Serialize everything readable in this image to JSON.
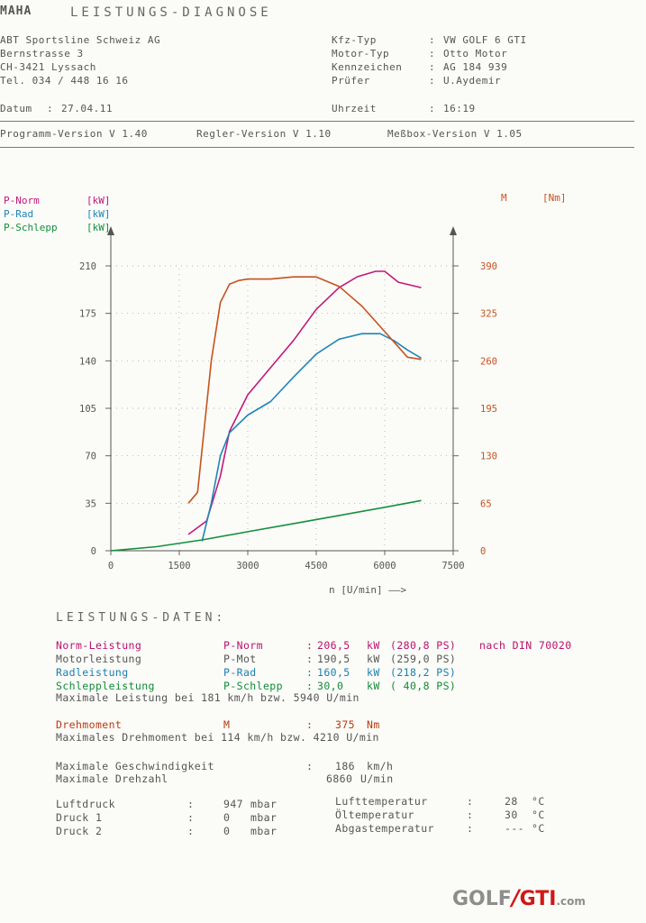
{
  "header": {
    "logo": "MAHA",
    "title": "LEISTUNGS-DIAGNOSE",
    "company": [
      "ABT Sportsline Schweiz AG",
      "Bernstrasse 3",
      "CH-3421 Lyssach",
      "Tel. 034 / 448 16 16"
    ],
    "vehicle": [
      {
        "label": "Kfz-Typ",
        "value": "VW GOLF 6 GTI"
      },
      {
        "label": "Motor-Typ",
        "value": "Otto Motor"
      },
      {
        "label": "Kennzeichen",
        "value": "AG 184 939"
      },
      {
        "label": "Prüfer",
        "value": "U.Aydemir"
      }
    ],
    "datum_label": "Datum",
    "datum": "27.04.11",
    "uhrzeit_label": "Uhrzeit",
    "uhrzeit": "16:19",
    "versions": {
      "programm": "Programm-Version V 1.40",
      "regler": "Regler-Version V 1.10",
      "messbox": "Meßbox-Version V 1.05"
    }
  },
  "chart_data": {
    "type": "line",
    "xlabel": "n [U/min] ——>",
    "x_ticks": [
      0,
      1500,
      3000,
      4500,
      6000,
      7500
    ],
    "xlim": [
      0,
      7500
    ],
    "ylim_left": [
      0,
      210
    ],
    "y_ticks_left": [
      0,
      35,
      70,
      105,
      140,
      175,
      210
    ],
    "ylim_right": [
      0,
      390
    ],
    "y_ticks_right": [
      0,
      65,
      130,
      195,
      260,
      325,
      390
    ],
    "legend_left": [
      {
        "name": "P-Norm",
        "unit": "[kW]",
        "color": "#c2187a"
      },
      {
        "name": "P-Rad",
        "unit": "[kW]",
        "color": "#1e86b8"
      },
      {
        "name": "P-Schlepp",
        "unit": "[kW]",
        "color": "#13903d"
      }
    ],
    "legend_right": {
      "name": "M",
      "unit": "[Nm]",
      "color": "#c6521e"
    },
    "series": [
      {
        "name": "P-Norm",
        "axis": "left",
        "color": "#c2187a",
        "x": [
          1700,
          2100,
          2400,
          2600,
          3000,
          3500,
          4000,
          4500,
          5000,
          5400,
          5800,
          6000,
          6300,
          6800
        ],
        "y": [
          12,
          22,
          55,
          88,
          115,
          135,
          155,
          178,
          194,
          202,
          206,
          206,
          198,
          194
        ]
      },
      {
        "name": "P-Rad",
        "axis": "left",
        "color": "#1e86b8",
        "x": [
          2000,
          2200,
          2400,
          2600,
          3000,
          3500,
          4000,
          4500,
          5000,
          5500,
          5900,
          6200,
          6500,
          6800
        ],
        "y": [
          7,
          35,
          70,
          87,
          100,
          110,
          128,
          145,
          156,
          160,
          160,
          155,
          148,
          142
        ]
      },
      {
        "name": "P-Schlepp",
        "axis": "left",
        "color": "#13903d",
        "x": [
          0,
          1000,
          2000,
          3000,
          4000,
          5000,
          6000,
          6800
        ],
        "y": [
          0,
          3,
          8,
          14,
          20,
          26,
          32,
          37
        ]
      },
      {
        "name": "M",
        "axis": "right",
        "color": "#c6521e",
        "x": [
          1700,
          1900,
          2050,
          2200,
          2400,
          2600,
          2800,
          3000,
          3500,
          4000,
          4500,
          5000,
          5500,
          6000,
          6500,
          6800
        ],
        "y": [
          65,
          80,
          170,
          260,
          340,
          365,
          370,
          372,
          372,
          375,
          375,
          362,
          335,
          300,
          265,
          262
        ]
      }
    ]
  },
  "data_section": {
    "title": "LEISTUNGS-DATEN:",
    "rows": [
      {
        "label": "Norm-Leistung",
        "sym": "P-Norm",
        "colon": ":",
        "val": "206,5",
        "unit": "kW",
        "ps": "(280,8 PS)",
        "extra": "nach DIN 70020",
        "color": "#b8126a"
      },
      {
        "label": "Motorleistung",
        "sym": "P-Mot",
        "colon": ":",
        "val": "190,5",
        "unit": "kW",
        "ps": "(259,0 PS)",
        "extra": "",
        "color": "#555555"
      },
      {
        "label": "Radleistung",
        "sym": "P-Rad",
        "colon": ":",
        "val": "160,5",
        "unit": "kW",
        "ps": "(218,2 PS)",
        "extra": "",
        "color": "#1a7fb0"
      },
      {
        "label": "Schleppleistung",
        "sym": "P-Schlepp",
        "colon": ":",
        "val": "30,0",
        "unit": "kW",
        "ps": "( 40,8 PS)",
        "extra": "",
        "color": "#118b3a"
      }
    ],
    "max_leistung": "Maximale Leistung bei 181 km/h bzw. 5940 U/min",
    "drehmoment": {
      "label": "Drehmoment",
      "sym": "M",
      "colon": ":",
      "val": "375",
      "unit": "Nm"
    },
    "max_drehmoment": "Maximales Drehmoment bei 114 km/h bzw. 4210 U/min",
    "max_geschw": {
      "label": "Maximale Geschwindigkeit",
      "colon": ":",
      "val": "186",
      "unit": "km/h"
    },
    "max_drehzahl": {
      "label": "Maximale Drehzahl",
      "colon": "",
      "val": "6860",
      "unit": "U/min"
    },
    "env_left": [
      {
        "label": "Luftdruck",
        "colon": ":",
        "val": "947",
        "unit": "mbar"
      },
      {
        "label": "Druck 1",
        "colon": ":",
        "val": "0",
        "unit": "mbar"
      },
      {
        "label": "Druck 2",
        "colon": ":",
        "val": "0",
        "unit": "mbar"
      }
    ],
    "env_right": [
      {
        "label": "Lufttemperatur",
        "colon": ":",
        "val": "28",
        "unit": "°C"
      },
      {
        "label": "Öltemperatur",
        "colon": ":",
        "val": "30",
        "unit": "°C"
      },
      {
        "label": "Abgastemperatur",
        "colon": ":",
        "val": "---",
        "unit": "°C"
      }
    ]
  },
  "watermark": {
    "part1": "GOLF",
    "part2": "GTI",
    "part3": ".com"
  }
}
